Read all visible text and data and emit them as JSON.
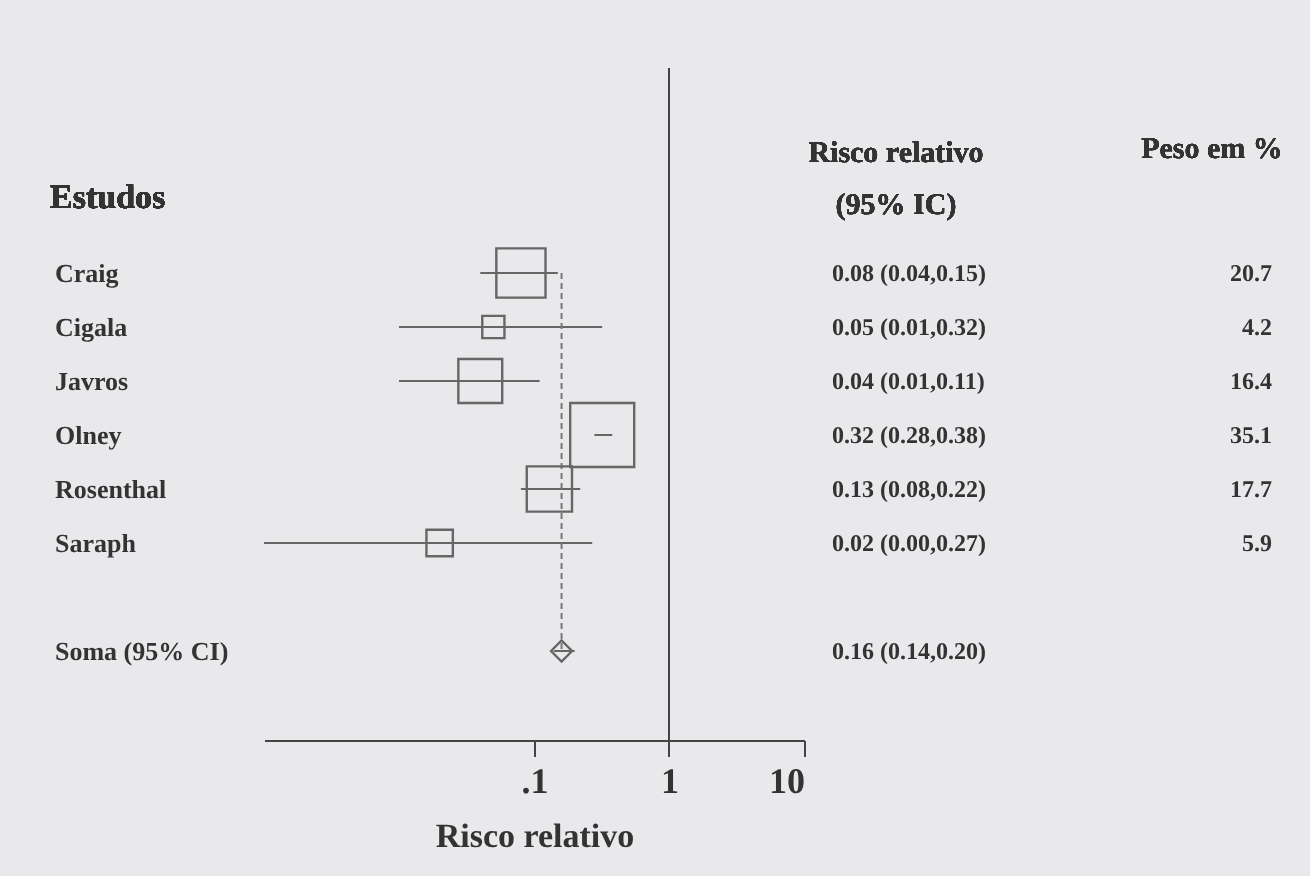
{
  "chart_data": {
    "type": "bubble",
    "orientation": "horizontal",
    "xlabel": "Risco relativo",
    "log": "x",
    "xlim": [
      0.001,
      10
    ],
    "xticks": [
      {
        "value": 0.1,
        "label": ".1"
      },
      1,
      10
    ],
    "categories": [
      "Craig",
      "Cigala",
      "Javros",
      "Olney",
      "Rosenthal",
      "Saraph",
      null,
      "Soma (95% CI)"
    ],
    "series": [
      {
        "marker": "square",
        "color": "#666666",
        "values": [
          0.08,
          0.05,
          0.04,
          0.32,
          0.13,
          0.02,
          null,
          null
        ],
        "errors": [
          [
            0.04,
            0.15
          ],
          [
            0.01,
            0.32
          ],
          [
            0.01,
            0.11
          ],
          [
            0.28,
            0.38
          ],
          [
            0.08,
            0.22
          ],
          [
            0.001,
            0.27
          ],
          null,
          null
        ],
        "sizes": [
          0.59,
          0.12,
          0.47,
          1,
          0.5,
          0.17,
          null,
          null
        ],
        "value_labels": [
          "0.08 (0.04,0.15)",
          "0.05 (0.01,0.32)",
          "0.04 (0.01,0.11)",
          "0.32 (0.28,0.38)",
          "0.13 (0.08,0.22)",
          "0.02 (0.00,0.27)",
          null,
          null
        ]
      },
      {
        "type": "scatter",
        "marker": "diamond",
        "color": "#666666",
        "values": [
          null,
          null,
          null,
          null,
          null,
          null,
          null,
          0.16
        ],
        "errors": [
          null,
          null,
          null,
          null,
          null,
          null,
          null,
          [
            0.14,
            0.2
          ]
        ]
      }
    ],
    "ref_lines": [
      {
        "axis": "x",
        "value": 1,
        "color": "#444444",
        "line_style": "solid"
      },
      {
        "axis": "x",
        "value": 0.16,
        "color": "#777777",
        "line_style": "dashed"
      }
    ],
    "annotations": [
      "Estudos",
      "Risco relativo\n(95% IC)",
      "Peso em %",
      "20.7",
      "4.2",
      "16.4",
      "35.1",
      "17.7",
      "5.9",
      "0.16 (0.14,0.20)"
    ]
  }
}
